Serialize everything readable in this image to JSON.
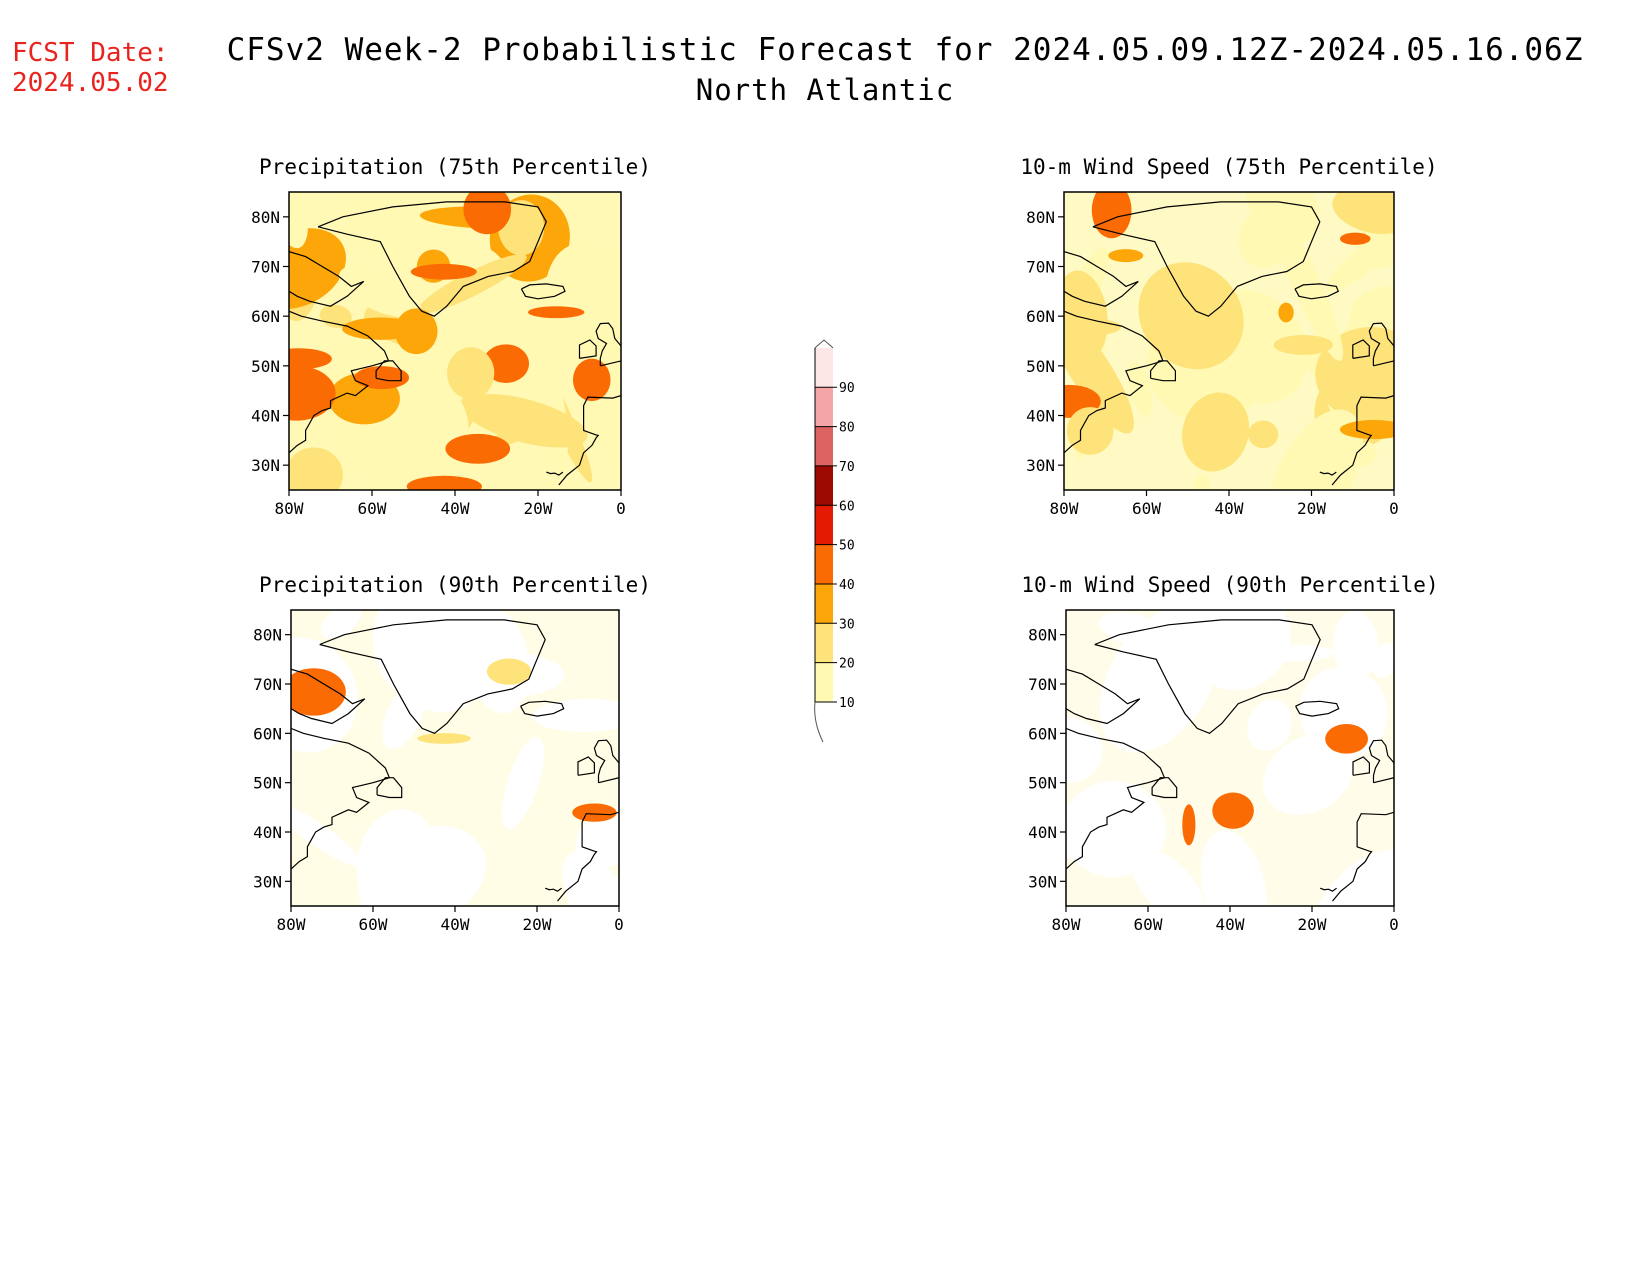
{
  "header": {
    "fcst_label": "FCST Date:",
    "fcst_date": "2024.05.02",
    "title": "CFSv2 Week-2 Probabilistic Forecast for 2024.05.09.12Z-2024.05.16.06Z",
    "region": "North Atlantic"
  },
  "axes": {
    "lon_ticks": [
      "80W",
      "60W",
      "40W",
      "20W",
      "0"
    ],
    "lat_ticks": [
      "80N",
      "70N",
      "60N",
      "50N",
      "40N",
      "30N"
    ],
    "lon_range": [
      -80,
      0
    ],
    "lat_range": [
      25,
      85
    ]
  },
  "panels": [
    {
      "id": "precip-75",
      "title": "Precipitation (75th Percentile)",
      "intensity": 0.62,
      "seed": 11
    },
    {
      "id": "wind-75",
      "title": "10-m Wind Speed (75th Percentile)",
      "intensity": 0.5,
      "seed": 23
    },
    {
      "id": "precip-90",
      "title": "Precipitation (90th Percentile)",
      "intensity": 0.22,
      "seed": 37
    },
    {
      "id": "wind-90",
      "title": "10-m Wind Speed (90th Percentile)",
      "intensity": 0.18,
      "seed": 51
    }
  ],
  "colorbar": {
    "levels": [
      "10",
      "20",
      "30",
      "40",
      "50",
      "60",
      "70",
      "80",
      "90"
    ],
    "colors": [
      "#fff9b4",
      "#fde37a",
      "#fca60a",
      "#fb6b04",
      "#e51a02",
      "#9c0a02",
      "#dd6262",
      "#f4a6a6",
      "#fde6e6"
    ]
  },
  "colors": {
    "fcst": "#e8241e",
    "coast": "#000000"
  }
}
